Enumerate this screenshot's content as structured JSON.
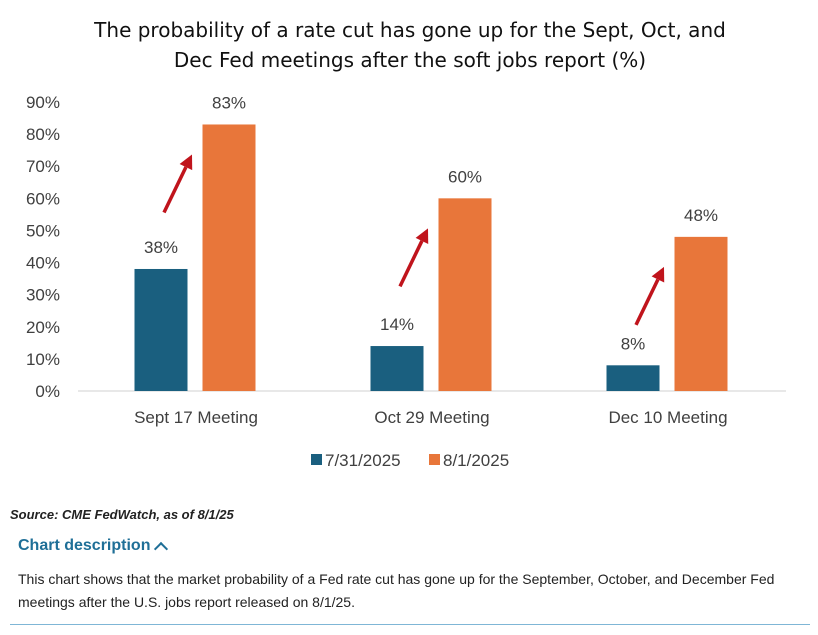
{
  "chart_data": {
    "type": "bar",
    "title": [
      "The probability of a rate cut has gone up for the Sept, Oct, and",
      "Dec Fed meetings after the soft jobs report (%)"
    ],
    "categories": [
      "Sept 17 Meeting",
      "Oct 29 Meeting",
      "Dec 10 Meeting"
    ],
    "series": [
      {
        "name": "7/31/2025",
        "color": "#1a5f7f",
        "values": [
          38,
          14,
          8
        ],
        "labels": [
          "38%",
          "14%",
          "8%"
        ]
      },
      {
        "name": "8/1/2025",
        "color": "#e8763a",
        "values": [
          83,
          60,
          48
        ],
        "labels": [
          "83%",
          "60%",
          "48%"
        ]
      }
    ],
    "yticks": [
      {
        "value": 90,
        "label": "90%"
      },
      {
        "value": 80,
        "label": "80%"
      },
      {
        "value": 70,
        "label": "70%"
      },
      {
        "value": 60,
        "label": "60%"
      },
      {
        "value": 50,
        "label": "50%"
      },
      {
        "value": 40,
        "label": "40%"
      },
      {
        "value": 30,
        "label": "30%"
      },
      {
        "value": 20,
        "label": "20%"
      },
      {
        "value": 10,
        "label": "10%"
      },
      {
        "value": 0,
        "label": "0%"
      }
    ],
    "ylim": [
      0,
      90
    ],
    "arrow_color": "#c0141c",
    "legend_position": "bottom"
  },
  "source": "Source: CME FedWatch, as of 8/1/25",
  "description": {
    "toggle_label": "Chart description",
    "text": "This chart shows that the market probability of a Fed rate cut has gone up for the September, October, and December Fed meetings after the U.S. jobs report released on 8/1/25."
  }
}
